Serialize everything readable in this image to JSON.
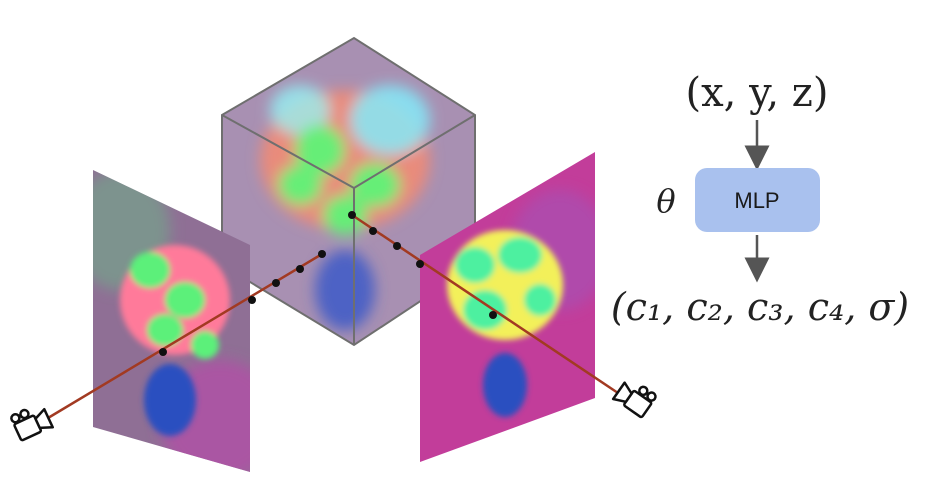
{
  "diagram": {
    "input_label": "(x, y, z)",
    "param_label": "θ",
    "network_label": "MLP",
    "output_label": "(c₁, c₂, c₃, c₄, σ)"
  },
  "colors": {
    "mlp_box": "#a9c1ee",
    "arrow": "#555555",
    "ray": "#a23a22",
    "sample_point": "#111111",
    "cube_edge": "#6f6f6f",
    "plane_left_bg": "#8f6f95",
    "plane_right_bg": "#c23d9a",
    "cube_bg": "#a890b2"
  },
  "icons": {
    "left_camera": "camera-icon",
    "right_camera": "camera-icon"
  }
}
